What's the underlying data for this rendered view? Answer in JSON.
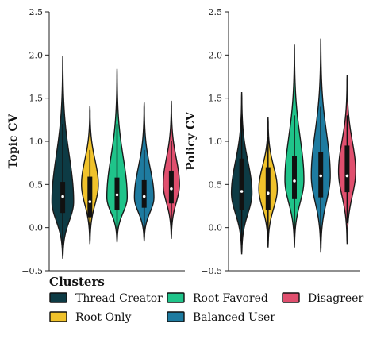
{
  "chart_data": [
    {
      "type": "violin",
      "ylabel": "Topic CV",
      "ylim": [
        -0.5,
        2.5
      ],
      "yticks": [
        "−0.5",
        "0.0",
        "0.5",
        "1.0",
        "1.5",
        "2.0",
        "2.5"
      ],
      "tick_values": [
        -0.5,
        0.0,
        0.5,
        1.0,
        1.5,
        2.0,
        2.5
      ],
      "categories": [
        "Thread Creator",
        "Root Only",
        "Root Favored",
        "Balanced User",
        "Disagreer"
      ],
      "series": [
        {
          "name": "Thread Creator",
          "min": -0.36,
          "max": 1.99,
          "q1": 0.17,
          "median": 0.36,
          "q3": 0.53,
          "whisker_low": -0.2,
          "whisker_high": 1.2,
          "peak": 0.3,
          "maxwidth": 0.8
        },
        {
          "name": "Root Only",
          "min": -0.19,
          "max": 1.41,
          "q1": 0.12,
          "median": 0.3,
          "q3": 0.59,
          "whisker_low": -0.1,
          "whisker_high": 0.9,
          "peak": 0.5,
          "maxwidth": 0.62
        },
        {
          "name": "Root Favored",
          "min": -0.17,
          "max": 1.84,
          "q1": 0.2,
          "median": 0.38,
          "q3": 0.58,
          "whisker_low": -0.08,
          "whisker_high": 1.2,
          "peak": 0.35,
          "maxwidth": 0.75
        },
        {
          "name": "Balanced User",
          "min": -0.16,
          "max": 1.45,
          "q1": 0.23,
          "median": 0.36,
          "q3": 0.55,
          "whisker_low": -0.05,
          "whisker_high": 0.9,
          "peak": 0.35,
          "maxwidth": 0.72
        },
        {
          "name": "Disagreer",
          "min": -0.13,
          "max": 1.47,
          "q1": 0.28,
          "median": 0.45,
          "q3": 0.66,
          "whisker_low": 0.0,
          "whisker_high": 1.0,
          "peak": 0.5,
          "maxwidth": 0.6
        }
      ]
    },
    {
      "type": "violin",
      "ylabel": "Policy CV",
      "ylim": [
        -0.5,
        2.5
      ],
      "yticks": [
        "−0.5",
        "0.0",
        "0.5",
        "1.0",
        "1.5",
        "2.0",
        "2.5"
      ],
      "tick_values": [
        -0.5,
        0.0,
        0.5,
        1.0,
        1.5,
        2.0,
        2.5
      ],
      "categories": [
        "Thread Creator",
        "Root Only",
        "Root Favored",
        "Balanced User",
        "Disagreer"
      ],
      "series": [
        {
          "name": "Thread Creator",
          "min": -0.31,
          "max": 1.57,
          "q1": 0.2,
          "median": 0.42,
          "q3": 0.8,
          "whisker_low": -0.2,
          "whisker_high": 1.3,
          "peak": 0.4,
          "maxwidth": 0.78
        },
        {
          "name": "Root Only",
          "min": -0.23,
          "max": 1.28,
          "q1": 0.2,
          "median": 0.4,
          "q3": 0.7,
          "whisker_low": -0.15,
          "whisker_high": 1.05,
          "peak": 0.45,
          "maxwidth": 0.7
        },
        {
          "name": "Root Favored",
          "min": -0.23,
          "max": 2.12,
          "q1": 0.33,
          "median": 0.54,
          "q3": 0.83,
          "whisker_low": -0.1,
          "whisker_high": 1.3,
          "peak": 0.55,
          "maxwidth": 0.72
        },
        {
          "name": "Balanced User",
          "min": -0.29,
          "max": 2.19,
          "q1": 0.35,
          "median": 0.6,
          "q3": 0.88,
          "whisker_low": -0.1,
          "whisker_high": 1.4,
          "peak": 0.6,
          "maxwidth": 0.72
        },
        {
          "name": "Disagreer",
          "min": -0.19,
          "max": 1.77,
          "q1": 0.41,
          "median": 0.6,
          "q3": 0.95,
          "whisker_low": 0.05,
          "whisker_high": 1.3,
          "peak": 0.65,
          "maxwidth": 0.65
        }
      ]
    }
  ],
  "colors": {
    "Thread Creator": "#0d3b45",
    "Root Only": "#f0c22b",
    "Root Favored": "#1fc48a",
    "Balanced User": "#1e7ba0",
    "Disagreer": "#e04f6e"
  },
  "legend": {
    "title": "Clusters",
    "items": [
      "Thread Creator",
      "Root Only",
      "Root Favored",
      "Balanced User",
      "Disagreer"
    ]
  }
}
